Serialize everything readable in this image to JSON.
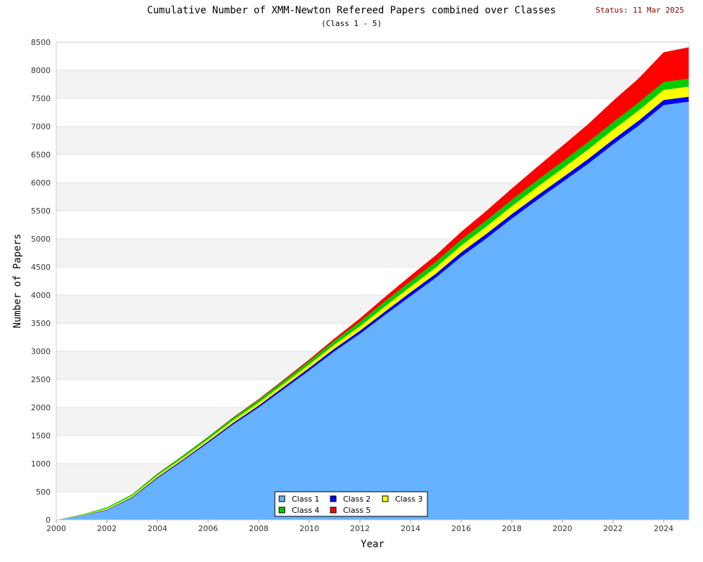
{
  "header": {
    "title": "Cumulative Number of XMM-Newton Refereed Papers combined over Classes",
    "subtitle": "(Class 1 - 5)",
    "status": "Status: 11 Mar 2025"
  },
  "chart_data": {
    "type": "area",
    "stacked": true,
    "title": "Cumulative Number of XMM-Newton Refereed Papers combined over Classes",
    "subtitle": "(Class 1 - 5)",
    "xlabel": "Year",
    "ylabel": "Number of Papers",
    "xlim": [
      2000,
      2025
    ],
    "ylim": [
      0,
      8500
    ],
    "x_ticks": [
      2000,
      2002,
      2004,
      2006,
      2008,
      2010,
      2012,
      2014,
      2016,
      2018,
      2020,
      2022,
      2024
    ],
    "y_ticks": [
      0,
      500,
      1000,
      1500,
      2000,
      2500,
      3000,
      3500,
      4000,
      4500,
      5000,
      5500,
      6000,
      6500,
      7000,
      7500,
      8000,
      8500
    ],
    "grid": "horizontal alternating bands",
    "legend_position": "bottom-center",
    "x": [
      2000,
      2001,
      2002,
      2003,
      2004,
      2005,
      2006,
      2007,
      2008,
      2009,
      2010,
      2011,
      2012,
      2013,
      2014,
      2015,
      2016,
      2017,
      2018,
      2019,
      2020,
      2021,
      2022,
      2023,
      2024,
      2025
    ],
    "series": [
      {
        "name": "Class 1",
        "color": "#66b2ff",
        "values": [
          0,
          70,
          170,
          390,
          740,
          1050,
          1370,
          1700,
          2000,
          2330,
          2660,
          3000,
          3310,
          3650,
          3980,
          4310,
          4680,
          5010,
          5360,
          5690,
          6010,
          6330,
          6680,
          7010,
          7380,
          7440
        ]
      },
      {
        "name": "Class 2",
        "color": "#0000ff",
        "values": [
          0,
          5,
          10,
          15,
          20,
          20,
          25,
          30,
          35,
          40,
          45,
          50,
          55,
          60,
          70,
          70,
          80,
          80,
          80,
          80,
          80,
          85,
          85,
          90,
          90,
          90
        ]
      },
      {
        "name": "Class 3",
        "color": "#ffff00",
        "values": [
          0,
          10,
          20,
          25,
          30,
          35,
          40,
          45,
          50,
          55,
          60,
          70,
          80,
          90,
          100,
          110,
          120,
          130,
          140,
          150,
          160,
          170,
          175,
          180,
          180,
          180
        ]
      },
      {
        "name": "Class 4",
        "color": "#00cc00",
        "values": [
          0,
          10,
          20,
          25,
          30,
          35,
          40,
          45,
          50,
          55,
          60,
          70,
          80,
          90,
          95,
          100,
          105,
          110,
          115,
          120,
          125,
          130,
          135,
          140,
          140,
          140
        ]
      },
      {
        "name": "Class 5",
        "color": "#ff0000",
        "values": [
          0,
          0,
          0,
          0,
          5,
          5,
          5,
          10,
          15,
          20,
          30,
          40,
          60,
          80,
          100,
          120,
          140,
          170,
          200,
          240,
          280,
          320,
          380,
          430,
          530,
          560
        ]
      }
    ]
  }
}
